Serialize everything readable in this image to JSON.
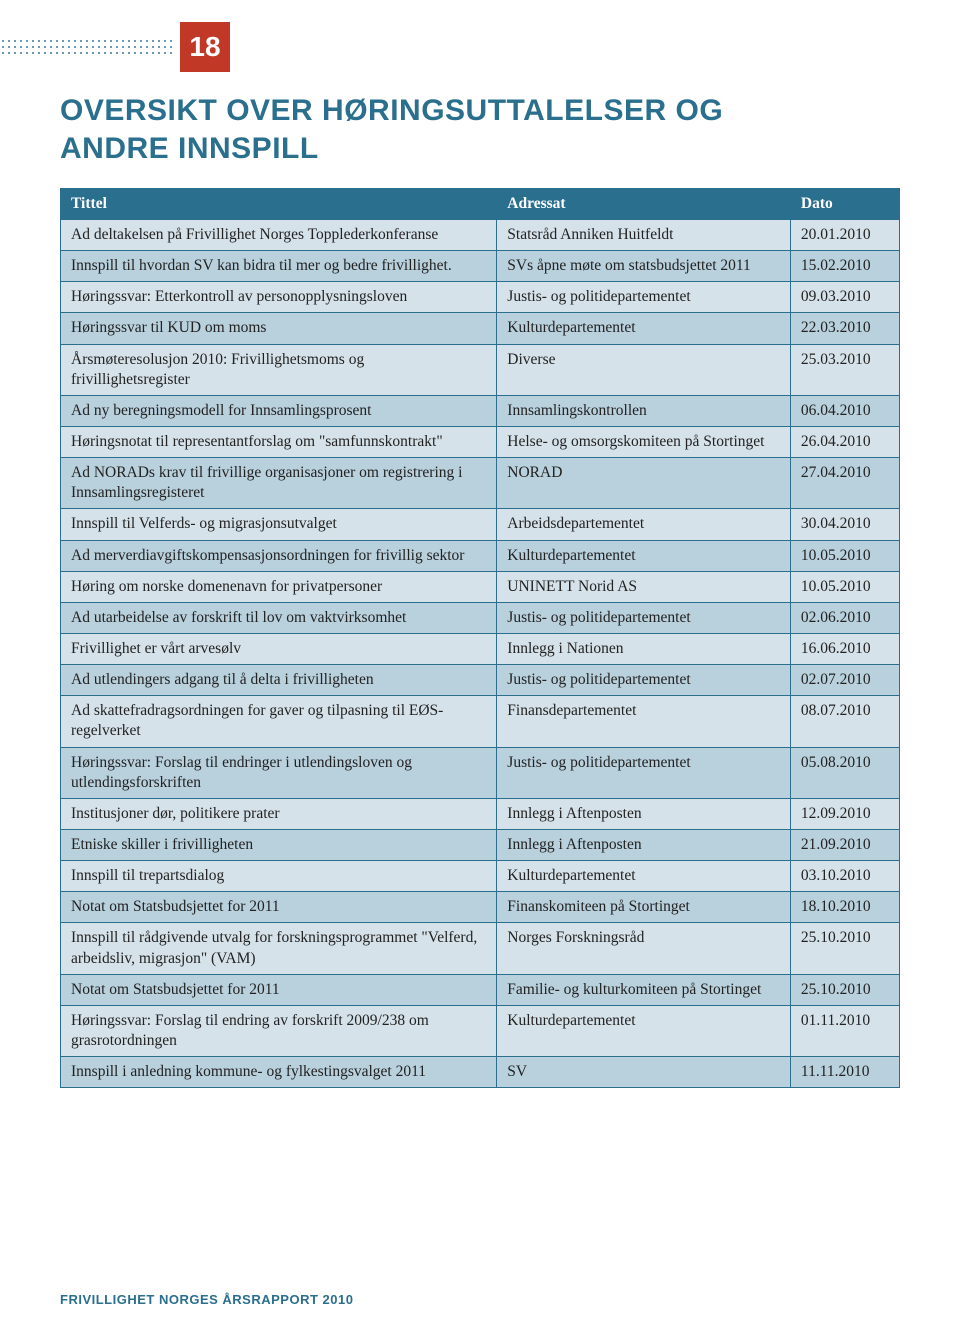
{
  "page_number": "18",
  "heading_line1": "OVERSIKT OVER HØRINGSUTTALELSER OG",
  "heading_line2": "ANDRE INNSPILL",
  "footer": "FRIVILLIGHET NORGES ÅRSRAPPORT 2010",
  "colors": {
    "accent_red": "#c13826",
    "accent_blue": "#2a6f8e",
    "row_light": "#d6e2e9",
    "row_dark": "#b9d0dd",
    "background": "#ffffff"
  },
  "table": {
    "columns": [
      "Tittel",
      "Adressat",
      "Dato"
    ],
    "rows": [
      [
        "Ad deltakelsen på Frivillighet Norges Topplederkonferanse",
        "Statsråd Anniken Huitfeldt",
        "20.01.2010"
      ],
      [
        "Innspill til hvordan SV kan bidra til mer og bedre frivillighet.",
        "SVs åpne møte om statsbudsjettet 2011",
        "15.02.2010"
      ],
      [
        "Høringssvar: Etterkontroll av personopplysningsloven",
        "Justis- og politidepartementet",
        "09.03.2010"
      ],
      [
        "Høringssvar til KUD om moms",
        "Kulturdepartementet",
        "22.03.2010"
      ],
      [
        "Årsmøteresolusjon 2010: Frivillighetsmoms og frivillighetsregister",
        "Diverse",
        "25.03.2010"
      ],
      [
        "Ad ny beregningsmodell for Innsamlingsprosent",
        "Innsamlingskontrollen",
        "06.04.2010"
      ],
      [
        "Høringsnotat til representantforslag om \"samfunnskontrakt\"",
        "Helse- og omsorgskomiteen på Stortinget",
        "26.04.2010"
      ],
      [
        "Ad NORADs krav til frivillige organisasjoner om registrering i Innsamlingsregisteret",
        "NORAD",
        "27.04.2010"
      ],
      [
        "Innspill til Velferds- og migrasjonsutvalget",
        "Arbeidsdepartementet",
        "30.04.2010"
      ],
      [
        "Ad merverdiavgiftskompensasjonsordningen for frivillig sektor",
        "Kulturdepartementet",
        "10.05.2010"
      ],
      [
        "Høring om norske domenenavn for privatpersoner",
        "UNINETT Norid AS",
        "10.05.2010"
      ],
      [
        "Ad utarbeidelse av forskrift til lov om vaktvirksomhet",
        "Justis- og politidepartementet",
        "02.06.2010"
      ],
      [
        "Frivillighet er vårt arvesølv",
        "Innlegg i Nationen",
        "16.06.2010"
      ],
      [
        "Ad utlendingers adgang til å delta i frivilligheten",
        "Justis- og politidepartementet",
        "02.07.2010"
      ],
      [
        "Ad skattefradragsordningen for gaver og tilpasning til EØS-regelverket",
        "Finansdepartementet",
        "08.07.2010"
      ],
      [
        "Høringssvar: Forslag til endringer i utlendingsloven og utlendingsforskriften",
        "Justis- og politidepartementet",
        "05.08.2010"
      ],
      [
        "Institusjoner dør, politikere prater",
        "Innlegg i Aftenposten",
        "12.09.2010"
      ],
      [
        "Etniske skiller i frivilligheten",
        "Innlegg i Aftenposten",
        "21.09.2010"
      ],
      [
        "Innspill til trepartsdialog",
        "Kulturdepartementet",
        "03.10.2010"
      ],
      [
        "Notat om Statsbudsjettet for 2011",
        "Finanskomiteen på Stortinget",
        "18.10.2010"
      ],
      [
        "Innspill til rådgivende utvalg for forskningsprogrammet \"Velferd, arbeidsliv, migrasjon\" (VAM)",
        "Norges Forskningsråd",
        "25.10.2010"
      ],
      [
        "Notat om Statsbudsjettet for 2011",
        "Familie- og kulturkomiteen på Stortinget",
        "25.10.2010"
      ],
      [
        "Høringssvar: Forslag til endring av forskrift 2009/238 om grasrotordningen",
        "Kulturdepartementet",
        "01.11.2010"
      ],
      [
        "Innspill i anledning kommune- og fylkestingsvalget 2011",
        "SV",
        "11.11.2010"
      ]
    ]
  }
}
